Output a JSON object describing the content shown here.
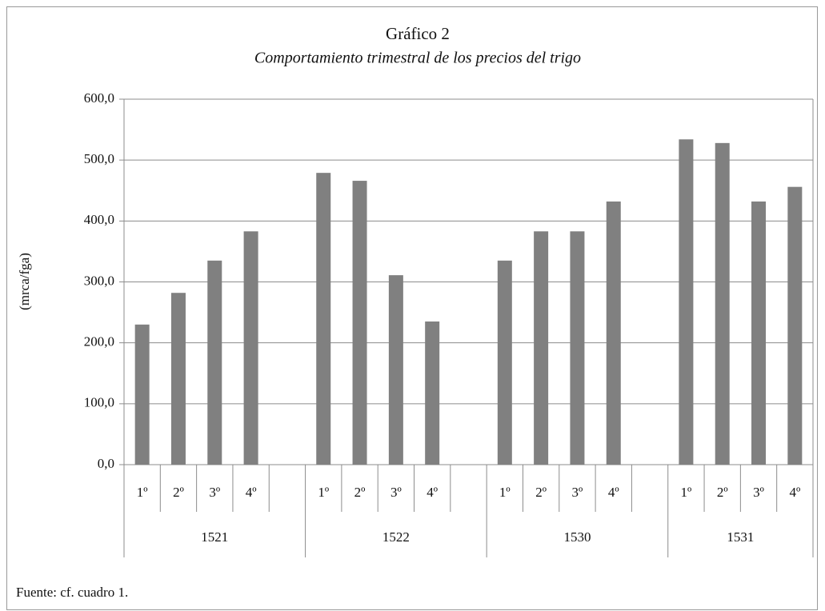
{
  "chart_data": {
    "type": "bar",
    "title": "Gráfico 2",
    "subtitle": "Comportamiento trimestral de los precios del trigo",
    "y_label": "(mrca/fga)",
    "source": "Fuente: cf. cuadro 1.",
    "categories": [
      "1º",
      "2º",
      "3º",
      "4º",
      null,
      "1º",
      "2º",
      "3º",
      "4º",
      null,
      "1º",
      "2º",
      "3º",
      "4º",
      null,
      "1º",
      "2º",
      "3º",
      "4º"
    ],
    "groups": [
      "1521",
      "1522",
      "1530",
      "1531"
    ],
    "values": [
      230,
      282,
      335,
      383,
      null,
      479,
      466,
      311,
      235,
      null,
      335,
      383,
      383,
      432,
      null,
      534,
      528,
      432,
      456
    ],
    "color": "#808080",
    "ylim": [
      0,
      600
    ],
    "yticks": [
      {
        "value": 0,
        "label": "0,0"
      },
      {
        "value": 100,
        "label": "100,0"
      },
      {
        "value": 200,
        "label": "200,0"
      },
      {
        "value": 300,
        "label": "300,0"
      },
      {
        "value": 400,
        "label": "400,0"
      },
      {
        "value": 500,
        "label": "500,0"
      },
      {
        "value": 600,
        "label": "600,0"
      }
    ],
    "grid": true
  }
}
